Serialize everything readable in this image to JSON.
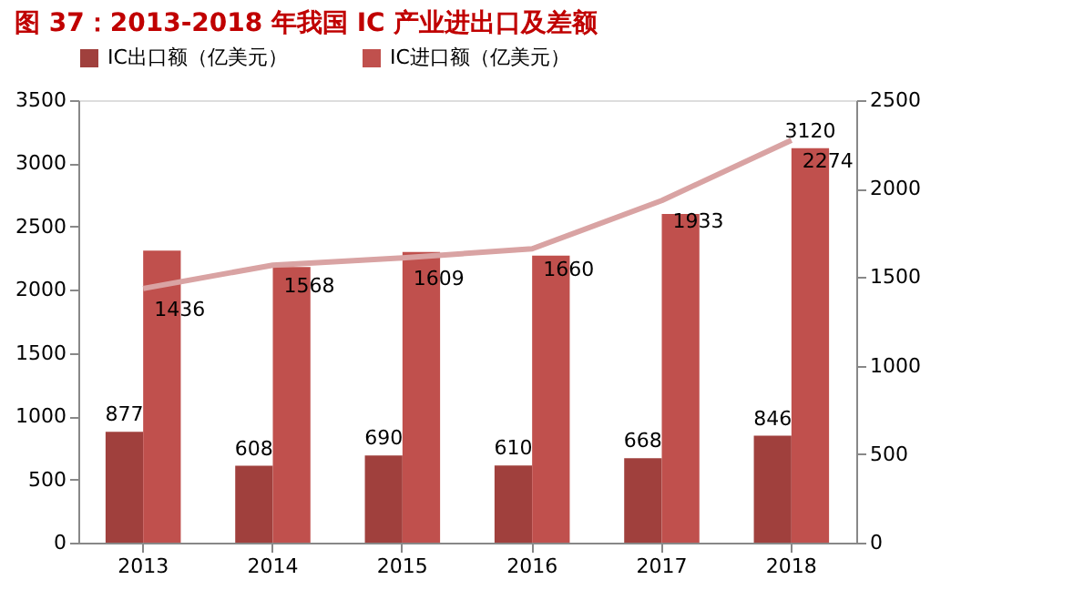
{
  "chart_data": {
    "type": "bar",
    "title": "图 37：2013-2018 年我国 IC 产业进出口及差额",
    "categories": [
      "2013",
      "2014",
      "2015",
      "2016",
      "2017",
      "2018"
    ],
    "series": [
      {
        "name": "IC出口额（亿美元）",
        "color": "#a0403d",
        "values": [
          877,
          608,
          690,
          610,
          668,
          846
        ],
        "data_labels": true
      },
      {
        "name": "IC进口额（亿美元）",
        "color": "#c0504d",
        "values": [
          2310,
          2180,
          2300,
          2270,
          2600,
          3120
        ],
        "value_labels": [
          null,
          null,
          null,
          null,
          null,
          "3120"
        ]
      },
      {
        "type": "line",
        "axis": "y2",
        "color": "#d9a3a3",
        "values": [
          1436,
          1568,
          1609,
          1660,
          1933,
          2274
        ],
        "data_labels": true,
        "marker": "none"
      }
    ],
    "ylim": [
      0,
      3500
    ],
    "yticks": [
      0,
      500,
      1000,
      1500,
      2000,
      2500,
      3000,
      3500
    ],
    "y2lim": [
      0,
      2500
    ],
    "y2ticks": [
      0,
      500,
      1000,
      1500,
      2000,
      2500
    ],
    "legend": "top",
    "grid": false
  }
}
